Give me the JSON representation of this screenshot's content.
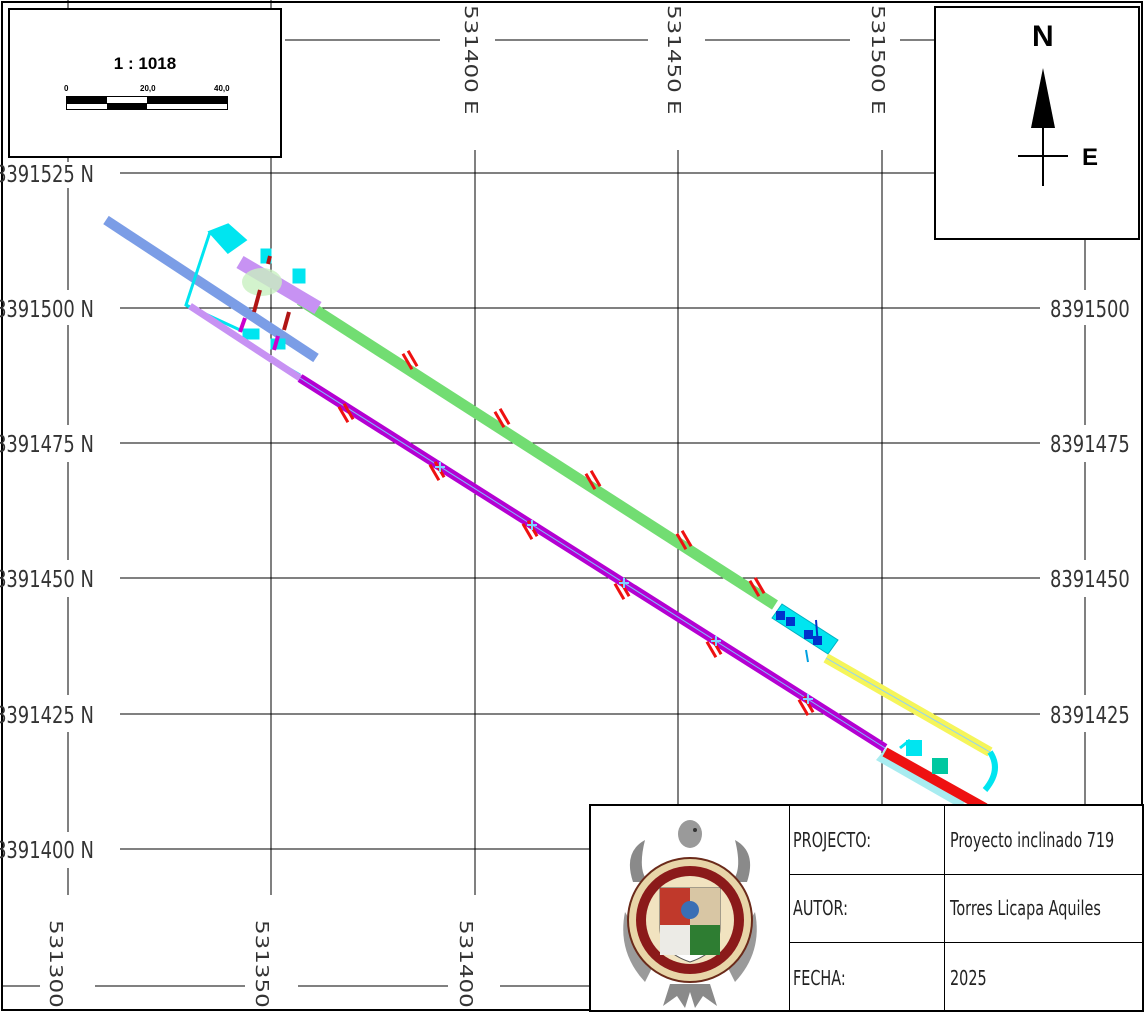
{
  "map": {
    "easting_labels_top": [
      "531400 E",
      "531450 E",
      "531500 E"
    ],
    "easting_labels_bottom": [
      "531300",
      "531350",
      "531400"
    ],
    "northing_labels_left": [
      "8391525 N",
      "8391500 N",
      "8391475 N",
      "8391450 N",
      "8391425 N",
      "8391400 N"
    ],
    "northing_labels_right": [
      "8391500",
      "8391475",
      "8391450",
      "8391425"
    ],
    "colors": {
      "green_route": "#72dd72",
      "purple_route": "#b400d2",
      "yellow_route": "#f5f55a",
      "blue_route": "#7b9de6",
      "cyan_block": "#00e5f0",
      "red_marker": "#ee1111",
      "light_violet": "#c792f3"
    }
  },
  "scale_bar": {
    "ratio": "1 : 1018",
    "ticks": [
      "0",
      "20,0",
      "40,0"
    ]
  },
  "north_arrow": {
    "north_label": "N",
    "east_label": "E"
  },
  "title_block": {
    "logo": "university-seal",
    "rows": [
      {
        "label": "PROJECTO:",
        "value": "Proyecto inclinado 719"
      },
      {
        "label": "AUTOR:",
        "value": "Torres Licapa Aquiles"
      },
      {
        "label": "FECHA:",
        "value": "2025"
      }
    ]
  }
}
